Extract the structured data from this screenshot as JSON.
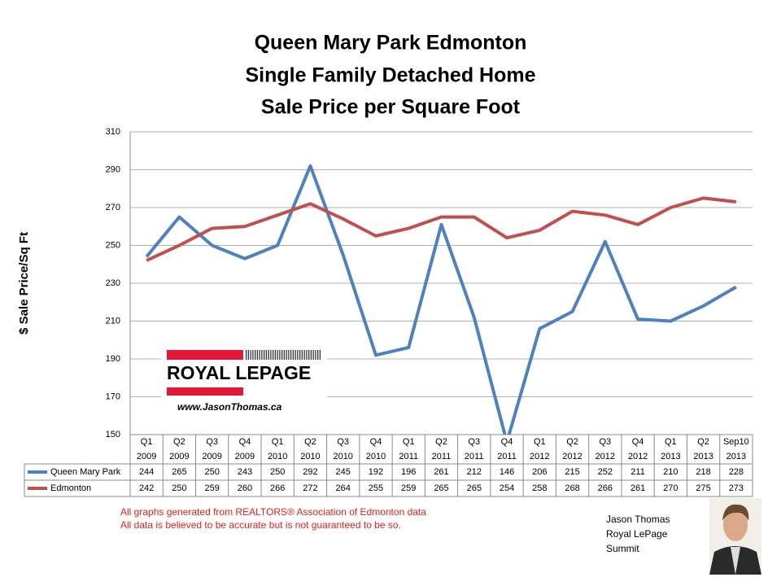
{
  "chart_data": {
    "type": "line",
    "title": "Queen Mary Park Edmonton",
    "subtitle": [
      "Single Family Detached Home",
      "Sale Price per Square Foot"
    ],
    "y_label": "$ Sale Price/Sq Ft",
    "categories": [
      "Q1 2009",
      "Q2 2009",
      "Q3 2009",
      "Q4 2009",
      "Q1 2010",
      "Q2 2010",
      "Q3 2010",
      "Q4 2010",
      "Q1 2011",
      "Q2 2011",
      "Q3 2011",
      "Q4 2011",
      "Q1 2012",
      "Q2 2012",
      "Q3 2012",
      "Q4 2012",
      "Q1 2013",
      "Q2 2013",
      "Sep10 2013"
    ],
    "series": [
      {
        "name": "Queen Mary Park",
        "color": "#4f81bd",
        "values": [
          244,
          265,
          250,
          243,
          250,
          292,
          245,
          192,
          196,
          261,
          212,
          146,
          206,
          215,
          252,
          211,
          210,
          218,
          228
        ]
      },
      {
        "name": "Edmonton",
        "color": "#c0504d",
        "values": [
          242,
          250,
          259,
          260,
          266,
          272,
          264,
          255,
          259,
          265,
          265,
          254,
          258,
          268,
          266,
          261,
          270,
          275,
          273
        ]
      }
    ],
    "ylim": [
      150,
      310
    ],
    "yticks": [
      150,
      170,
      190,
      210,
      230,
      250,
      270,
      290,
      310
    ],
    "grid": true,
    "data_table": true
  },
  "footer": {
    "notes": [
      "All graphs generated from REALTORS® Association of Edmonton data",
      "All data is believed to be accurate but is not guaranteed to be so."
    ],
    "logo": {
      "name": "ROYAL LEPAGE",
      "url": "www.JasonThomas.ca"
    },
    "agent": {
      "name": "Jason Thomas",
      "company": "Royal LePage",
      "office": "Summit"
    }
  }
}
